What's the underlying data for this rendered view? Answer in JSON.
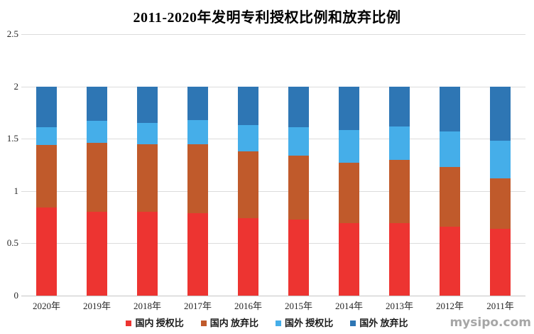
{
  "watermark": "mysipo.com",
  "chart_data": {
    "type": "bar",
    "stacked": true,
    "title": "2011-2020年发明专利授权比例和放弃比例",
    "xlabel": "",
    "ylabel": "",
    "ylim": [
      0,
      2.5
    ],
    "yticks": [
      "0",
      "0.5",
      "1",
      "1.5",
      "2",
      "2.5"
    ],
    "grid": true,
    "legend_position": "bottom",
    "categories": [
      "2020年",
      "2019年",
      "2018年",
      "2017年",
      "2016年",
      "2015年",
      "2014年",
      "2013年",
      "2012年",
      "2011年"
    ],
    "series": [
      {
        "name": "国内 授权比",
        "color": "#ed3431",
        "values": [
          0.84,
          0.8,
          0.8,
          0.79,
          0.74,
          0.73,
          0.69,
          0.69,
          0.66,
          0.64
        ]
      },
      {
        "name": "国内 放弃比",
        "color": "#c05a2b",
        "values": [
          0.6,
          0.66,
          0.65,
          0.66,
          0.64,
          0.61,
          0.58,
          0.61,
          0.57,
          0.48
        ]
      },
      {
        "name": "国外 授权比",
        "color": "#45aee9",
        "values": [
          0.17,
          0.21,
          0.2,
          0.23,
          0.25,
          0.27,
          0.31,
          0.32,
          0.34,
          0.36
        ]
      },
      {
        "name": "国外 放弃比",
        "color": "#2e76b4",
        "values": [
          0.39,
          0.33,
          0.35,
          0.32,
          0.37,
          0.39,
          0.42,
          0.38,
          0.43,
          0.52
        ]
      }
    ]
  }
}
